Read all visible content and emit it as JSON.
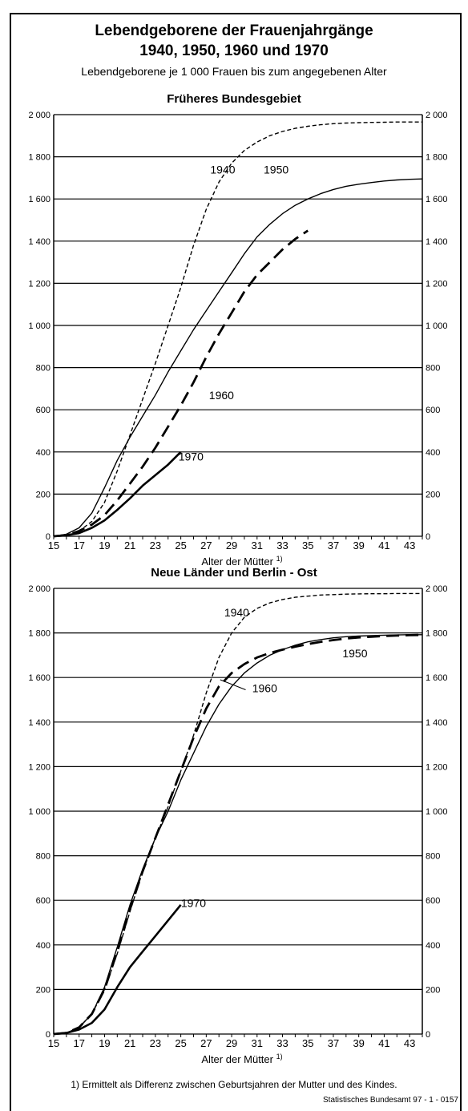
{
  "title_line1": "Lebendgeborene der Frauenjahrgänge",
  "title_line2": "1940, 1950, 1960 und 1970",
  "subtitle": "Lebendgeborene je 1 000 Frauen bis zum angegebenen Alter",
  "footnote": "1) Ermittelt als Differenz zwischen Geburtsjahren der Mutter und des Kindes.",
  "source": "Statistisches Bundesamt 97 - 1 - 0157",
  "colors": {
    "line": "#000000",
    "grid": "#000000",
    "background": "#ffffff"
  },
  "chart_data": [
    {
      "type": "line",
      "title": "Früheres Bundesgebiet",
      "xlabel": "Alter der Mütter",
      "xlabel_note": "1)",
      "ylabel": "",
      "xlim": [
        15,
        44
      ],
      "ylim": [
        0,
        2000
      ],
      "xticks": [
        "15",
        "17",
        "19",
        "21",
        "23",
        "25",
        "27",
        "29",
        "31",
        "33",
        "35",
        "37",
        "39",
        "41",
        "43"
      ],
      "yticks": [
        "0",
        "200",
        "400",
        "600",
        "800",
        "1 000",
        "1 200",
        "1 400",
        "1 600",
        "1 800",
        "2 000"
      ],
      "grid": "horizontal",
      "series": [
        {
          "name": "1940",
          "style": "dash-short",
          "x": [
            15,
            16,
            17,
            18,
            19,
            20,
            21,
            22,
            23,
            24,
            25,
            26,
            27,
            28,
            29,
            30,
            31,
            32,
            33,
            34,
            35,
            36,
            37,
            38,
            39,
            40,
            41,
            42,
            43,
            44
          ],
          "y": [
            0,
            5,
            25,
            70,
            160,
            310,
            480,
            650,
            820,
            1000,
            1180,
            1380,
            1550,
            1680,
            1770,
            1830,
            1870,
            1900,
            1920,
            1935,
            1945,
            1952,
            1957,
            1960,
            1962,
            1963,
            1964,
            1965,
            1965,
            1965
          ]
        },
        {
          "name": "1950",
          "style": "solid",
          "x": [
            15,
            16,
            17,
            18,
            19,
            20,
            21,
            22,
            23,
            24,
            25,
            26,
            27,
            28,
            29,
            30,
            31,
            32,
            33,
            34,
            35,
            36,
            37,
            38,
            39,
            40,
            41,
            42,
            43,
            44
          ],
          "y": [
            0,
            10,
            40,
            110,
            230,
            360,
            470,
            570,
            670,
            780,
            880,
            980,
            1070,
            1160,
            1250,
            1340,
            1420,
            1480,
            1530,
            1570,
            1600,
            1625,
            1645,
            1660,
            1670,
            1678,
            1685,
            1690,
            1693,
            1695
          ]
        },
        {
          "name": "1960",
          "style": "dash-long",
          "x": [
            15,
            16,
            17,
            18,
            19,
            20,
            21,
            22,
            23,
            24,
            25,
            26,
            27,
            28,
            29,
            30,
            31,
            32,
            33,
            34,
            35
          ],
          "y": [
            0,
            5,
            25,
            55,
            100,
            170,
            250,
            330,
            420,
            520,
            620,
            730,
            850,
            960,
            1060,
            1160,
            1240,
            1300,
            1360,
            1410,
            1450
          ]
        },
        {
          "name": "1970",
          "style": "solid-bold",
          "x": [
            15,
            16,
            17,
            18,
            19,
            20,
            21,
            22,
            23,
            24,
            25
          ],
          "y": [
            0,
            5,
            15,
            40,
            75,
            125,
            180,
            240,
            290,
            340,
            400
          ]
        }
      ],
      "labels": [
        {
          "text": "1940",
          "x": 28.3,
          "y": 1720
        },
        {
          "text": "1950",
          "x": 32.5,
          "y": 1720
        },
        {
          "text": "1960",
          "x": 28.2,
          "y": 650
        },
        {
          "text": "1970",
          "x": 25.8,
          "y": 360
        }
      ]
    },
    {
      "type": "line",
      "title": "Neue Länder und Berlin - Ost",
      "xlabel": "Alter der Mütter",
      "xlabel_note": "1)",
      "ylabel": "",
      "xlim": [
        15,
        44
      ],
      "ylim": [
        0,
        2000
      ],
      "xticks": [
        "15",
        "17",
        "19",
        "21",
        "23",
        "25",
        "27",
        "29",
        "31",
        "33",
        "35",
        "37",
        "39",
        "41",
        "43"
      ],
      "yticks": [
        "0",
        "200",
        "400",
        "600",
        "800",
        "1 000",
        "1 200",
        "1 400",
        "1 600",
        "1 800",
        "2 000"
      ],
      "grid": "horizontal",
      "series": [
        {
          "name": "1940",
          "style": "dash-short",
          "x": [
            15,
            16,
            17,
            18,
            19,
            20,
            21,
            22,
            23,
            24,
            25,
            26,
            27,
            28,
            29,
            30,
            31,
            32,
            33,
            34,
            35,
            36,
            37,
            38,
            39,
            40,
            41,
            42,
            43,
            44
          ],
          "y": [
            0,
            5,
            30,
            90,
            200,
            360,
            550,
            730,
            880,
            1020,
            1180,
            1340,
            1530,
            1690,
            1800,
            1870,
            1910,
            1935,
            1950,
            1960,
            1965,
            1970,
            1972,
            1974,
            1975,
            1976,
            1976,
            1977,
            1977,
            1977
          ]
        },
        {
          "name": "1950",
          "style": "solid",
          "x": [
            15,
            16,
            17,
            18,
            19,
            20,
            21,
            22,
            23,
            24,
            25,
            26,
            27,
            28,
            29,
            30,
            31,
            32,
            33,
            34,
            35,
            36,
            37,
            38,
            39,
            40,
            41,
            42,
            43,
            44
          ],
          "y": [
            0,
            5,
            30,
            90,
            210,
            390,
            580,
            740,
            880,
            1000,
            1140,
            1260,
            1380,
            1480,
            1560,
            1620,
            1665,
            1700,
            1725,
            1745,
            1760,
            1770,
            1778,
            1783,
            1786,
            1788,
            1790,
            1791,
            1792,
            1792
          ]
        },
        {
          "name": "1960",
          "style": "dash-long",
          "x": [
            15,
            16,
            17,
            18,
            19,
            20,
            21,
            22,
            23,
            24,
            25,
            26,
            27,
            28,
            29,
            30,
            31,
            32,
            33,
            34,
            35,
            36,
            37,
            38,
            39,
            40,
            41,
            42,
            43,
            44
          ],
          "y": [
            0,
            5,
            30,
            90,
            200,
            370,
            560,
            730,
            880,
            1030,
            1180,
            1330,
            1460,
            1560,
            1620,
            1660,
            1690,
            1710,
            1725,
            1738,
            1750,
            1760,
            1768,
            1775,
            1780,
            1783,
            1786,
            1788,
            1790,
            1791
          ]
        },
        {
          "name": "1970",
          "style": "solid-bold",
          "x": [
            15,
            16,
            17,
            18,
            19,
            20,
            21,
            22,
            23,
            24,
            25
          ],
          "y": [
            0,
            5,
            20,
            50,
            110,
            210,
            300,
            370,
            440,
            510,
            580
          ]
        }
      ],
      "labels": [
        {
          "text": "1940",
          "x": 29.4,
          "y": 1875
        },
        {
          "text": "1950",
          "x": 38.7,
          "y": 1690
        },
        {
          "text": "1960",
          "x": 31.6,
          "y": 1535
        },
        {
          "text": "1970",
          "x": 26.0,
          "y": 570
        }
      ]
    }
  ]
}
